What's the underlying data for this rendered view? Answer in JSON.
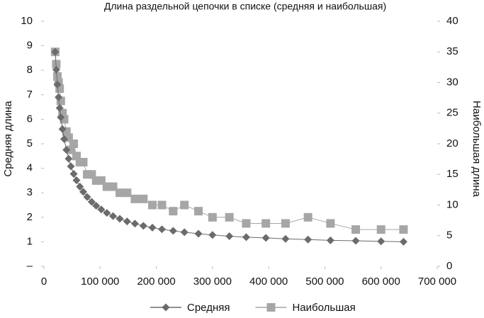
{
  "chart_data": {
    "type": "line",
    "title": "Длина раздельной цепочки в списке (средняя и наибольшая)",
    "y_label": "Средняя длина",
    "y2_label": "Наибольшая длина",
    "x": [
      20000,
      22000,
      24000,
      26000,
      28000,
      30000,
      33000,
      36000,
      40000,
      44000,
      48000,
      53000,
      58000,
      64000,
      70000,
      77000,
      85000,
      93000,
      102000,
      112000,
      123000,
      135000,
      148000,
      162000,
      177000,
      193000,
      210000,
      230000,
      250000,
      275000,
      300000,
      330000,
      360000,
      395000,
      430000,
      470000,
      510000,
      555000,
      600000,
      640000
    ],
    "series": [
      {
        "name": "Средняя",
        "color": "#6b6b6b",
        "marker": "diamond",
        "values": [
          8.75,
          8.02,
          7.42,
          6.9,
          6.46,
          6.08,
          5.6,
          5.19,
          4.75,
          4.39,
          4.08,
          3.77,
          3.51,
          3.25,
          3.04,
          2.83,
          2.63,
          2.47,
          2.32,
          2.18,
          2.05,
          1.94,
          1.83,
          1.74,
          1.65,
          1.58,
          1.51,
          1.45,
          1.39,
          1.33,
          1.28,
          1.23,
          1.19,
          1.16,
          1.12,
          1.09,
          1.06,
          1.04,
          1.02,
          1.0
        ]
      },
      {
        "name": "Наибольшая",
        "color": "#a6a6a6",
        "marker": "square",
        "axis": "y2",
        "values": [
          35,
          33,
          31,
          30,
          29,
          27,
          25,
          24,
          22,
          21,
          19,
          20,
          18,
          17,
          17,
          15,
          15,
          14,
          14,
          13,
          13,
          12,
          12,
          11,
          11,
          10,
          10,
          9,
          10,
          9,
          8,
          8,
          7,
          7,
          7,
          8,
          7,
          6,
          6,
          6
        ]
      }
    ],
    "xlim": [
      0,
      700000
    ],
    "xticks": [
      0,
      {
        "value": 100000,
        "label": "100 000"
      },
      {
        "value": 200000,
        "label": "200 000"
      },
      {
        "value": 300000,
        "label": "300 000"
      },
      {
        "value": 400000,
        "label": "400 000"
      },
      {
        "value": 500000,
        "label": "500 000"
      },
      {
        "value": 600000,
        "label": "600 000"
      },
      {
        "value": 700000,
        "label": "700 000"
      }
    ],
    "ylim": [
      0,
      10
    ],
    "yticks": [
      {
        "value": 0,
        "label": "–"
      },
      1,
      2,
      3,
      4,
      5,
      6,
      7,
      8,
      9,
      10
    ],
    "y2lim": [
      0,
      40
    ],
    "y2ticks": [
      0,
      5,
      10,
      15,
      20,
      25,
      30,
      35,
      40
    ],
    "legend": "bottom"
  }
}
